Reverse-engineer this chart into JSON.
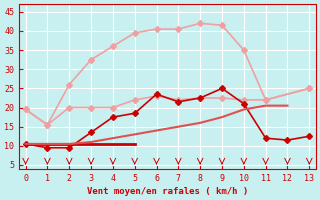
{
  "title": "",
  "xlabel": "Vent moyen/en rafales ( km/h )",
  "x": [
    0,
    1,
    2,
    3,
    4,
    5,
    6,
    7,
    8,
    9,
    10,
    11,
    12,
    13
  ],
  "series": [
    {
      "name": "light_pink_upper",
      "y": [
        19.5,
        15.5,
        26,
        32.5,
        36,
        39.5,
        40.5,
        40.5,
        42,
        41.5,
        35,
        22,
        25
      ],
      "color": "#f0a0a0",
      "marker": "D",
      "markersize": 3,
      "linewidth": 1.2,
      "x": [
        0,
        1,
        2,
        3,
        4,
        5,
        6,
        7,
        8,
        9,
        10,
        11,
        13
      ]
    },
    {
      "name": "light_pink_lower",
      "y": [
        19.5,
        15.5,
        20,
        20,
        20,
        22,
        23,
        22,
        22.5,
        22.5,
        22,
        22,
        25
      ],
      "color": "#f0a0a0",
      "marker": "D",
      "markersize": 3,
      "linewidth": 1.2,
      "x": [
        0,
        1,
        2,
        3,
        4,
        5,
        6,
        7,
        8,
        9,
        10,
        11,
        13
      ]
    },
    {
      "name": "dark_red_main",
      "y": [
        10.5,
        9.5,
        9.5,
        13.5,
        17.5,
        18.5,
        23.5,
        21.5,
        22.5,
        25,
        21,
        12,
        11.5,
        12.5
      ],
      "color": "#cc0000",
      "marker": "D",
      "markersize": 3,
      "linewidth": 1.2,
      "x": [
        0,
        1,
        2,
        3,
        4,
        5,
        6,
        7,
        8,
        9,
        10,
        11,
        12,
        13
      ]
    },
    {
      "name": "dark_red_flat",
      "y": [
        10.5,
        10.5,
        10.5,
        10.5,
        10.5,
        10.5,
        null,
        null,
        null,
        null,
        null,
        null,
        null,
        null
      ],
      "color": "#cc0000",
      "marker": null,
      "markersize": 2,
      "linewidth": 2.0,
      "x": [
        0,
        1,
        2,
        3,
        4,
        5,
        6,
        7,
        8,
        9,
        10,
        11,
        12,
        13
      ]
    },
    {
      "name": "medium_red_rising",
      "y": [
        10.5,
        10.5,
        10.5,
        11,
        12,
        13,
        14,
        15,
        16,
        17.5,
        19.5,
        20.5,
        20.5,
        null
      ],
      "color": "#e05050",
      "marker": null,
      "markersize": 2,
      "linewidth": 1.5,
      "x": [
        0,
        1,
        2,
        3,
        4,
        5,
        6,
        7,
        8,
        9,
        10,
        11,
        12,
        13
      ]
    }
  ],
  "ylim": [
    4,
    47
  ],
  "xlim": [
    -0.3,
    13.3
  ],
  "yticks": [
    5,
    10,
    15,
    20,
    25,
    30,
    35,
    40,
    45
  ],
  "xticks": [
    0,
    1,
    2,
    3,
    4,
    5,
    6,
    7,
    8,
    9,
    10,
    11,
    12,
    13
  ],
  "bg_color": "#c8f0f0",
  "grid_color": "#ffffff",
  "tick_color": "#cc0000",
  "label_color": "#cc0000",
  "arrow_color": "#cc0000"
}
